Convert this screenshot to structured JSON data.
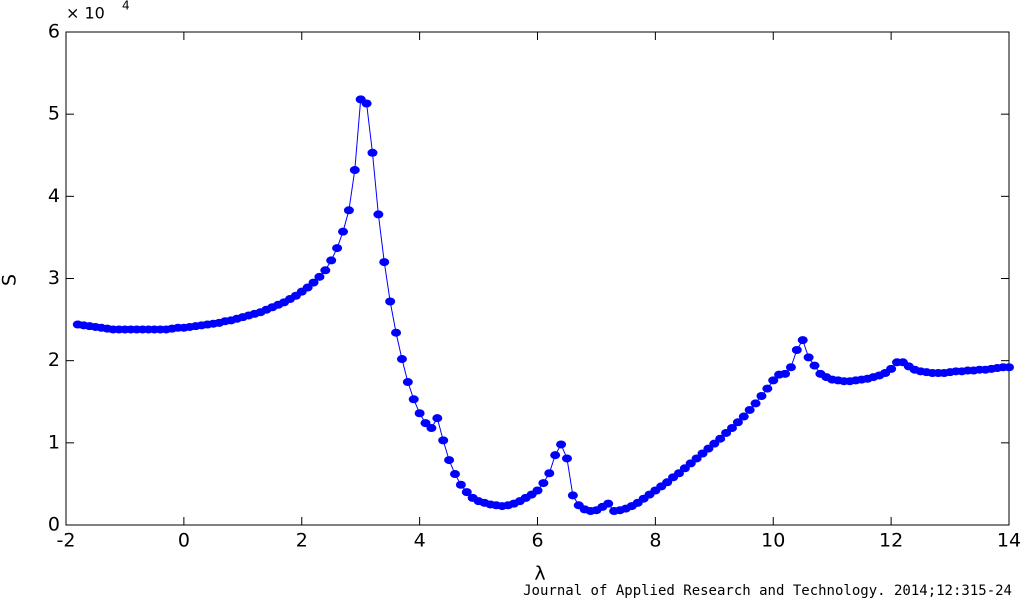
{
  "chart_data": {
    "type": "line",
    "xlabel": "λ",
    "ylabel": "S",
    "y_multiplier": {
      "base": "× 10",
      "exponent": "4"
    },
    "source": "Journal of Applied Research and Technology. 2014;12:315-24",
    "color": "#0000ff",
    "markers": true,
    "xlim": [
      -2,
      14
    ],
    "xticks": [
      -2,
      0,
      2,
      4,
      6,
      8,
      10,
      12,
      14
    ],
    "ylim": [
      0,
      6
    ],
    "yticks": [
      0,
      1,
      2,
      3,
      4,
      5,
      6
    ],
    "x": [
      -1.8,
      -1.7,
      -1.6,
      -1.5,
      -1.4,
      -1.3,
      -1.2,
      -1.1,
      -1.0,
      -0.9,
      -0.8,
      -0.7,
      -0.6,
      -0.5,
      -0.4,
      -0.3,
      -0.2,
      -0.1,
      0.0,
      0.1,
      0.2,
      0.3,
      0.4,
      0.5,
      0.6,
      0.7,
      0.8,
      0.9,
      1.0,
      1.1,
      1.2,
      1.3,
      1.4,
      1.5,
      1.6,
      1.7,
      1.8,
      1.9,
      2.0,
      2.1,
      2.2,
      2.3,
      2.4,
      2.5,
      2.6,
      2.7,
      2.8,
      2.9,
      3.0,
      3.1,
      3.2,
      3.3,
      3.4,
      3.5,
      3.6,
      3.7,
      3.8,
      3.9,
      4.0,
      4.1,
      4.2,
      4.3,
      4.4,
      4.5,
      4.6,
      4.7,
      4.8,
      4.9,
      5.0,
      5.1,
      5.2,
      5.3,
      5.4,
      5.5,
      5.6,
      5.7,
      5.8,
      5.9,
      6.0,
      6.1,
      6.2,
      6.3,
      6.4,
      6.5,
      6.6,
      6.7,
      6.8,
      6.9,
      7.0,
      7.1,
      7.2,
      7.3,
      7.4,
      7.5,
      7.6,
      7.7,
      7.8,
      7.9,
      8.0,
      8.1,
      8.2,
      8.3,
      8.4,
      8.5,
      8.6,
      8.7,
      8.8,
      8.9,
      9.0,
      9.1,
      9.2,
      9.3,
      9.4,
      9.5,
      9.6,
      9.7,
      9.8,
      9.9,
      10.0,
      10.1,
      10.2,
      10.3,
      10.4,
      10.5,
      10.6,
      10.7,
      10.8,
      10.9,
      11.0,
      11.1,
      11.2,
      11.3,
      11.4,
      11.5,
      11.6,
      11.7,
      11.8,
      11.9,
      12.0,
      12.1,
      12.2,
      12.3,
      12.4,
      12.5,
      12.6,
      12.7,
      12.8,
      12.9,
      13.0,
      13.1,
      13.2,
      13.3,
      13.4,
      13.5,
      13.6,
      13.7,
      13.8,
      13.9,
      14.0
    ],
    "values": [
      2.44,
      2.43,
      2.42,
      2.41,
      2.4,
      2.39,
      2.38,
      2.38,
      2.38,
      2.38,
      2.38,
      2.38,
      2.38,
      2.38,
      2.38,
      2.38,
      2.39,
      2.4,
      2.4,
      2.41,
      2.42,
      2.43,
      2.44,
      2.45,
      2.46,
      2.48,
      2.49,
      2.51,
      2.53,
      2.55,
      2.57,
      2.59,
      2.62,
      2.65,
      2.68,
      2.71,
      2.75,
      2.79,
      2.84,
      2.89,
      2.95,
      3.02,
      3.1,
      3.22,
      3.37,
      3.57,
      3.83,
      4.32,
      5.18,
      5.13,
      4.53,
      3.78,
      3.2,
      2.72,
      2.34,
      2.02,
      1.74,
      1.53,
      1.36,
      1.24,
      1.18,
      1.3,
      1.03,
      0.79,
      0.62,
      0.49,
      0.4,
      0.33,
      0.29,
      0.27,
      0.25,
      0.24,
      0.23,
      0.24,
      0.26,
      0.29,
      0.33,
      0.37,
      0.42,
      0.51,
      0.63,
      0.85,
      0.98,
      0.81,
      0.36,
      0.24,
      0.19,
      0.17,
      0.18,
      0.22,
      0.26,
      0.17,
      0.18,
      0.2,
      0.23,
      0.27,
      0.32,
      0.37,
      0.42,
      0.47,
      0.52,
      0.58,
      0.63,
      0.69,
      0.75,
      0.81,
      0.87,
      0.93,
      0.99,
      1.05,
      1.12,
      1.18,
      1.25,
      1.32,
      1.4,
      1.48,
      1.57,
      1.66,
      1.76,
      1.83,
      1.84,
      1.92,
      2.13,
      2.25,
      2.04,
      1.94,
      1.84,
      1.8,
      1.77,
      1.76,
      1.75,
      1.75,
      1.76,
      1.77,
      1.78,
      1.8,
      1.82,
      1.85,
      1.9,
      1.98,
      1.98,
      1.93,
      1.89,
      1.87,
      1.86,
      1.85,
      1.85,
      1.85,
      1.86,
      1.87,
      1.87,
      1.88,
      1.88,
      1.89,
      1.89,
      1.9,
      1.91,
      1.92,
      1.92
    ]
  }
}
